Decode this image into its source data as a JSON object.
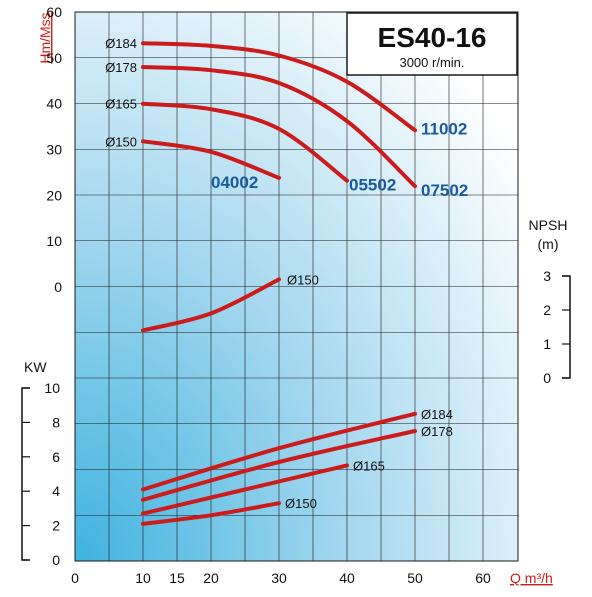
{
  "chart_data": {
    "type": "line",
    "title": "ES40-16",
    "subtitle": "3000 r/min.",
    "xlabel": "Q m³/h",
    "x_ticks": [
      "0",
      "10",
      "15",
      "20",
      "30",
      "40",
      "50",
      "60"
    ],
    "xlim": [
      0,
      65
    ],
    "colors": {
      "curve": "#cc1b1b",
      "axis_label": "#cc1b1b",
      "model_label": "#1a5aa0",
      "grid": "#1a1a1a"
    },
    "head": {
      "ylabel": "Hm/Mss",
      "y_ticks": [
        "0",
        "10",
        "20",
        "30",
        "40",
        "50",
        "60"
      ],
      "ylim": [
        0,
        60
      ],
      "series": [
        {
          "name": "Ø184",
          "model": "11002",
          "points": [
            [
              10,
              53.2
            ],
            [
              20,
              52.6
            ],
            [
              30,
              50.5
            ],
            [
              40,
              44.8
            ],
            [
              50,
              34.2
            ]
          ]
        },
        {
          "name": "Ø178",
          "model": "07502",
          "points": [
            [
              10,
              48.0
            ],
            [
              20,
              47.3
            ],
            [
              30,
              44.5
            ],
            [
              40,
              36.2
            ],
            [
              50,
              22.0
            ]
          ]
        },
        {
          "name": "Ø165",
          "model": "05502",
          "points": [
            [
              10,
              40.0
            ],
            [
              20,
              38.8
            ],
            [
              30,
              34.5
            ],
            [
              40,
              23.2
            ]
          ]
        },
        {
          "name": "Ø150",
          "model": "04002",
          "points": [
            [
              10,
              31.8
            ],
            [
              20,
              29.5
            ],
            [
              30,
              23.8
            ]
          ]
        }
      ]
    },
    "npsh": {
      "ylabel_line1": "NPSH",
      "ylabel_line2": "(m)",
      "y_ticks": [
        "0",
        "1",
        "2",
        "3"
      ],
      "ylim": [
        0,
        3
      ],
      "series": [
        {
          "name": "Ø150",
          "points": [
            [
              10,
              1.4
            ],
            [
              20,
              1.9
            ],
            [
              30,
              2.9
            ]
          ]
        }
      ]
    },
    "power": {
      "ylabel": "KW",
      "y_ticks": [
        "0",
        "2",
        "4",
        "6",
        "8",
        "10"
      ],
      "ylim": [
        0,
        10
      ],
      "series": [
        {
          "name": "Ø184",
          "points": [
            [
              10,
              4.1
            ],
            [
              30,
              6.5
            ],
            [
              50,
              8.5
            ]
          ]
        },
        {
          "name": "Ø178",
          "points": [
            [
              10,
              3.5
            ],
            [
              30,
              5.7
            ],
            [
              50,
              7.5
            ]
          ]
        },
        {
          "name": "Ø165",
          "points": [
            [
              10,
              2.7
            ],
            [
              25,
              4.1
            ],
            [
              40,
              5.5
            ]
          ]
        },
        {
          "name": "Ø150",
          "points": [
            [
              10,
              2.1
            ],
            [
              20,
              2.6
            ],
            [
              30,
              3.3
            ]
          ]
        }
      ]
    }
  }
}
